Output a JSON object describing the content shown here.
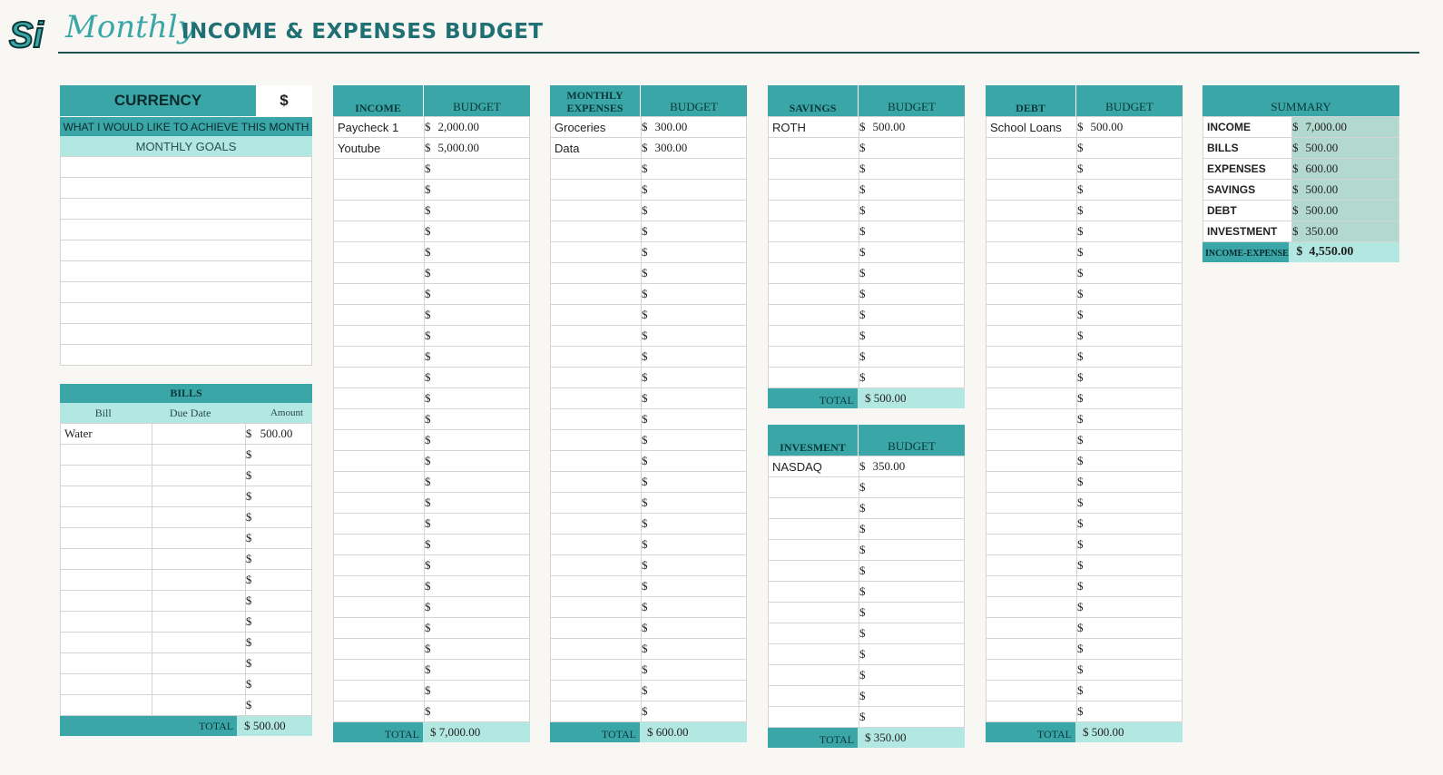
{
  "header": {
    "logo_text": "Si",
    "script_word": "Monthly",
    "title": "INCOME & EXPENSES BUDGET"
  },
  "colors": {
    "accent": "#3aa6a8",
    "light": "#b2e8e1",
    "summary_col": "#b3d9cf",
    "title": "#1f6f73"
  },
  "currency": {
    "label": "CURRENCY",
    "symbol": "$"
  },
  "goals": {
    "subtitle": "WHAT I WOULD LIKE TO ACHIEVE THIS MONTH",
    "header": "MONTHLY GOALS",
    "rows": [
      "",
      "",
      "",
      "",
      "",
      "",
      "",
      "",
      "",
      ""
    ]
  },
  "bills": {
    "title": "BILLS",
    "columns": [
      "Bill",
      "Due Date",
      "Amount"
    ],
    "rows": [
      {
        "bill": "Water",
        "due": "",
        "amount": "500.00"
      }
    ],
    "blank_rows": 13,
    "total_label": "TOTAL",
    "total": "$  500.00"
  },
  "income": {
    "col1": "INCOME",
    "col2": "BUDGET",
    "rows": [
      {
        "name": "Paycheck 1",
        "amount": "2,000.00"
      },
      {
        "name": "Youtube",
        "amount": "5,000.00"
      }
    ],
    "blank_rows": 27,
    "total_label": "TOTAL",
    "total": "$  7,000.00"
  },
  "expenses": {
    "col1": "MONTHLY EXPENSES",
    "col2": "BUDGET",
    "rows": [
      {
        "name": "Groceries",
        "amount": "300.00"
      },
      {
        "name": "Data",
        "amount": "300.00"
      }
    ],
    "blank_rows": 27,
    "total_label": "TOTAL",
    "total": "$  600.00"
  },
  "savings": {
    "col1": "SAVINGS",
    "col2": "BUDGET",
    "rows": [
      {
        "name": "ROTH",
        "amount": "500.00"
      }
    ],
    "blank_rows": 12,
    "total_label": "TOTAL",
    "total": "$  500.00"
  },
  "investment": {
    "col1": "INVESMENT",
    "col2": "BUDGET",
    "rows": [
      {
        "name": "NASDAQ",
        "amount": "350.00"
      }
    ],
    "blank_rows": 12,
    "total_label": "TOTAL",
    "total": "$  350.00"
  },
  "debt": {
    "col1": "DEBT",
    "col2": "BUDGET",
    "rows": [
      {
        "name": "School Loans",
        "amount": "500.00"
      }
    ],
    "blank_rows": 28,
    "total_label": "TOTAL",
    "total": "$  500.00"
  },
  "summary": {
    "title": "SUMMARY",
    "rows": [
      {
        "label": "INCOME",
        "value": "7,000.00"
      },
      {
        "label": "BILLS",
        "value": "500.00"
      },
      {
        "label": "EXPENSES",
        "value": "600.00"
      },
      {
        "label": "SAVINGS",
        "value": "500.00"
      },
      {
        "label": "DEBT",
        "value": "500.00"
      },
      {
        "label": "INVESTMENT",
        "value": "350.00"
      }
    ],
    "net_label": "INCOME-EXPENSE",
    "net_value": "4,550.00"
  },
  "symbols": {
    "dollar": "$"
  }
}
